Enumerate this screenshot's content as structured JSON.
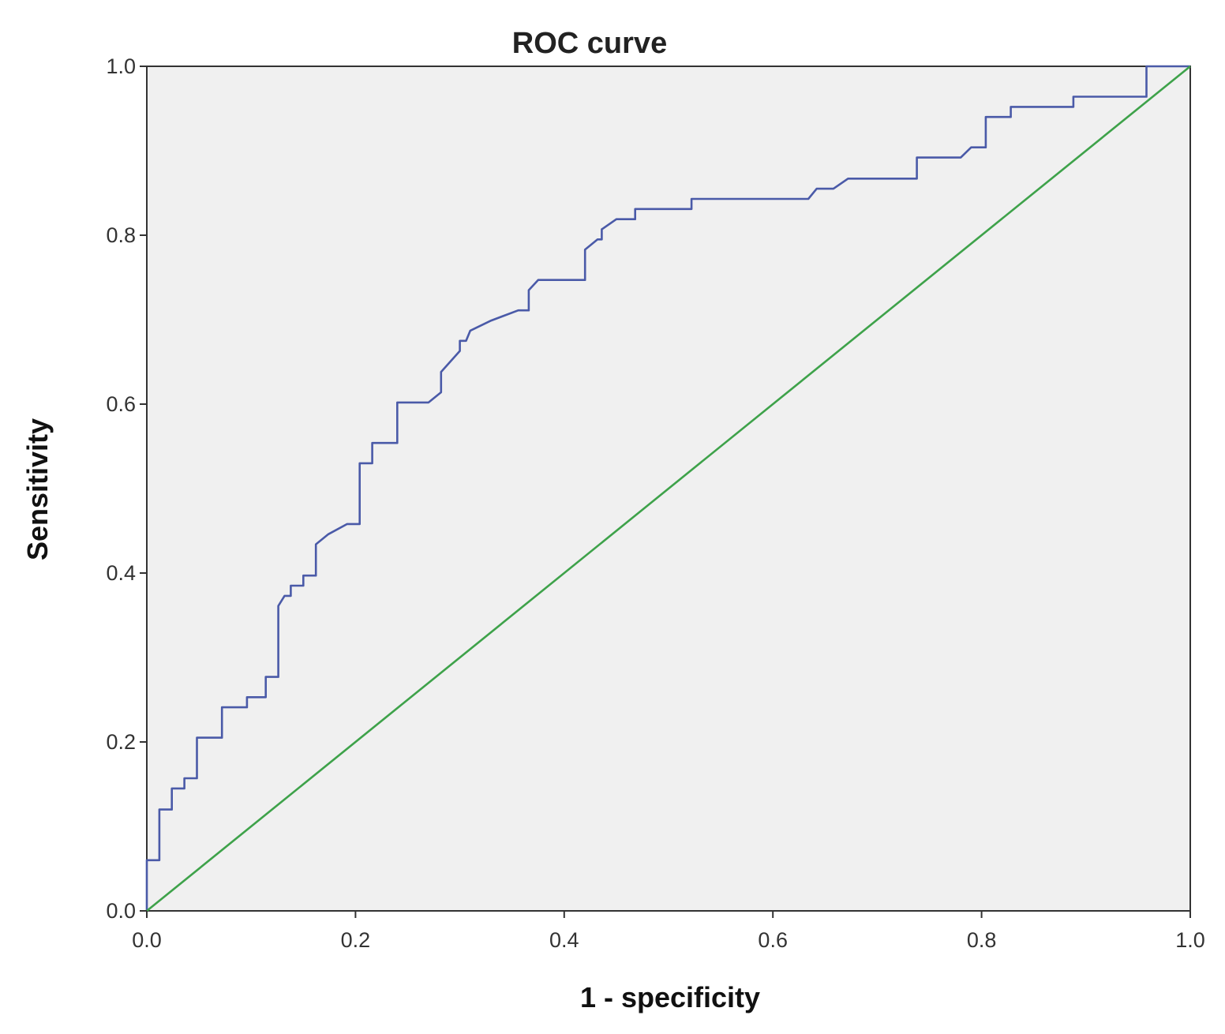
{
  "chart_data": {
    "type": "line",
    "title": "ROC curve",
    "xlabel": "1 - specificity",
    "ylabel": "Sensitivity",
    "xlim": [
      0,
      1
    ],
    "ylim": [
      0,
      1
    ],
    "x_ticks": [
      "0.0",
      "0.2",
      "0.4",
      "0.6",
      "0.8",
      "1.0"
    ],
    "y_ticks": [
      "0.0",
      "0.2",
      "0.4",
      "0.6",
      "0.8",
      "1.0"
    ],
    "grid": false,
    "legend": "none",
    "colors": {
      "plot_background": "#f0f0f0",
      "roc_curve": "#4a5aa8",
      "reference_line": "#3ea24a",
      "axis": "#333333"
    },
    "series": [
      {
        "role": "roc-curve",
        "x": [
          0.0,
          0.0,
          0.012,
          0.012,
          0.024,
          0.024,
          0.036,
          0.036,
          0.048,
          0.048,
          0.072,
          0.072,
          0.096,
          0.096,
          0.114,
          0.114,
          0.126,
          0.126,
          0.132,
          0.138,
          0.138,
          0.15,
          0.15,
          0.162,
          0.162,
          0.174,
          0.192,
          0.204,
          0.204,
          0.216,
          0.216,
          0.24,
          0.24,
          0.27,
          0.282,
          0.282,
          0.3,
          0.3,
          0.306,
          0.31,
          0.33,
          0.356,
          0.366,
          0.366,
          0.375,
          0.42,
          0.42,
          0.432,
          0.436,
          0.436,
          0.45,
          0.468,
          0.468,
          0.522,
          0.522,
          0.634,
          0.642,
          0.658,
          0.672,
          0.738,
          0.738,
          0.78,
          0.79,
          0.804,
          0.804,
          0.828,
          0.828,
          0.888,
          0.888,
          0.958,
          0.958,
          1.0
        ],
        "y": [
          0.0,
          0.06,
          0.06,
          0.12,
          0.12,
          0.145,
          0.145,
          0.157,
          0.157,
          0.205,
          0.205,
          0.241,
          0.241,
          0.253,
          0.253,
          0.277,
          0.277,
          0.361,
          0.373,
          0.373,
          0.385,
          0.385,
          0.397,
          0.397,
          0.434,
          0.446,
          0.458,
          0.458,
          0.53,
          0.53,
          0.554,
          0.554,
          0.602,
          0.602,
          0.614,
          0.638,
          0.663,
          0.675,
          0.675,
          0.687,
          0.699,
          0.711,
          0.711,
          0.735,
          0.747,
          0.747,
          0.783,
          0.795,
          0.795,
          0.807,
          0.819,
          0.819,
          0.831,
          0.831,
          0.843,
          0.843,
          0.855,
          0.855,
          0.867,
          0.867,
          0.892,
          0.892,
          0.904,
          0.904,
          0.94,
          0.94,
          0.952,
          0.952,
          0.964,
          0.964,
          1.0,
          1.0
        ]
      },
      {
        "role": "reference-line",
        "x": [
          0.0,
          1.0
        ],
        "y": [
          0.0,
          1.0
        ]
      }
    ]
  }
}
